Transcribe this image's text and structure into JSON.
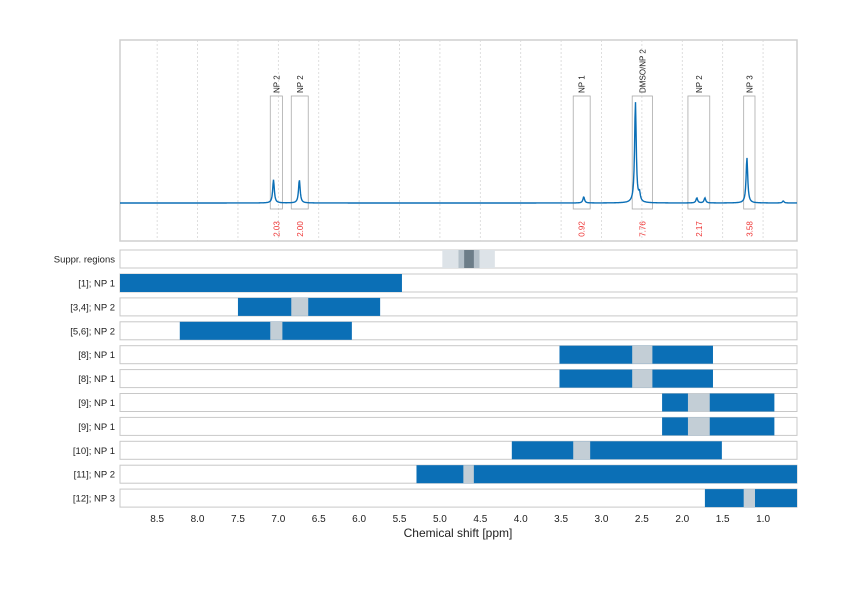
{
  "chart_data": {
    "type": "line",
    "xlabel": "Chemical shift [ppm]",
    "xlim": [
      8.96,
      0.58
    ],
    "x_reversed": true,
    "grid": true,
    "xticks": [
      "8.5",
      "8.0",
      "7.5",
      "7.0",
      "6.5",
      "6.0",
      "5.5",
      "5.0",
      "4.5",
      "4.0",
      "3.5",
      "3.0",
      "2.5",
      "2.0",
      "1.5",
      "1.0"
    ],
    "spectrum_color": "#0b6fb6",
    "peaks": [
      {
        "ppm": 7.06,
        "rel_height": 0.23
      },
      {
        "ppm": 6.74,
        "rel_height": 0.23
      },
      {
        "ppm": 3.22,
        "rel_height": 0.06
      },
      {
        "ppm": 2.58,
        "rel_height": 1.0
      },
      {
        "ppm": 2.53,
        "rel_height": 0.08
      },
      {
        "ppm": 1.82,
        "rel_height": 0.05
      },
      {
        "ppm": 1.72,
        "rel_height": 0.05
      },
      {
        "ppm": 1.2,
        "rel_height": 0.45
      },
      {
        "ppm": 0.75,
        "rel_height": 0.02
      }
    ],
    "regions": [
      {
        "label": "NP 2",
        "from": 7.1,
        "to": 6.95,
        "integral": "2.03"
      },
      {
        "label": "NP 2",
        "from": 6.84,
        "to": 6.63,
        "integral": "2.00"
      },
      {
        "label": "NP 1",
        "from": 3.35,
        "to": 3.14,
        "integral": "0.92"
      },
      {
        "label": "DMSO/NP 2",
        "from": 2.62,
        "to": 2.37,
        "integral": "7.76"
      },
      {
        "label": "NP 2",
        "from": 1.93,
        "to": 1.66,
        "integral": "2.17"
      },
      {
        "label": "NP 3",
        "from": 1.24,
        "to": 1.1,
        "integral": "3.58"
      }
    ],
    "suppressed": {
      "label": "Suppr. regions",
      "outer": [
        4.97,
        4.32
      ],
      "middle": [
        4.77,
        4.51
      ],
      "inner": [
        4.7,
        4.58
      ]
    },
    "tracks": [
      {
        "label": "[1]; NP 1",
        "from": 8.96,
        "to": 5.47,
        "gap": null
      },
      {
        "label": "[3,4]; NP 2",
        "from": 7.5,
        "to": 5.74,
        "gap": [
          6.84,
          6.63
        ]
      },
      {
        "label": "[5,6]; NP 2",
        "from": 8.22,
        "to": 6.09,
        "gap": [
          7.1,
          6.95
        ]
      },
      {
        "label": "[8]; NP 1",
        "from": 3.52,
        "to": 1.62,
        "gap": [
          2.62,
          2.37
        ]
      },
      {
        "label": "[8]; NP 1",
        "from": 3.52,
        "to": 1.62,
        "gap": [
          2.62,
          2.37
        ]
      },
      {
        "label": "[9]; NP 1",
        "from": 2.25,
        "to": 0.86,
        "gap": [
          1.93,
          1.66
        ]
      },
      {
        "label": "[9]; NP 1",
        "from": 2.25,
        "to": 0.86,
        "gap": [
          1.93,
          1.66
        ]
      },
      {
        "label": "[10]; NP 1",
        "from": 4.11,
        "to": 1.51,
        "gap": [
          3.35,
          3.14
        ]
      },
      {
        "label": "[11]; NP 2",
        "from": 5.29,
        "to": 0.58,
        "gap": [
          4.71,
          4.58
        ]
      },
      {
        "label": "[12]; NP 3",
        "from": 1.72,
        "to": 0.58,
        "gap": [
          1.24,
          1.1
        ]
      }
    ],
    "track_color": "#0b6fb6",
    "gap_color": "#c3ced6",
    "integral_color": "#ee3333"
  }
}
